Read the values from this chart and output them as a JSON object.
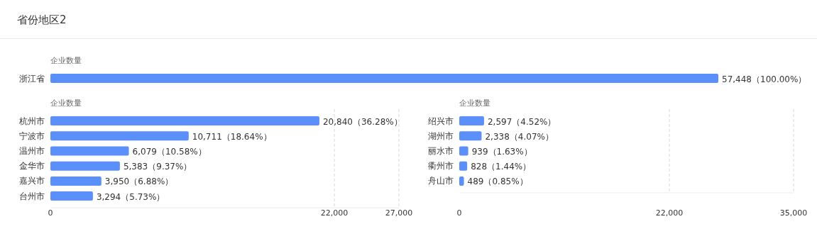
{
  "chart_data": [
    {
      "type": "bar",
      "orientation": "horizontal",
      "title": "省份地区2",
      "ylabel": "企业数量",
      "categories": [
        "浙江省"
      ],
      "series": [
        {
          "color": "#5b8ff9",
          "values": [
            57448
          ],
          "value_labels": [
            "57,448（100.00%）"
          ]
        }
      ]
    },
    {
      "type": "bar",
      "orientation": "horizontal",
      "ylabel": "企业数量",
      "categories": [
        "杭州市",
        "宁波市",
        "温州市",
        "金华市",
        "嘉兴市",
        "台州市"
      ],
      "series": [
        {
          "color": "#5b8ff9",
          "values": [
            20840,
            10711,
            6079,
            5383,
            3950,
            3294
          ],
          "value_labels": [
            "20,840（36.28%）",
            "10,711（18.64%）",
            "6,079（10.58%）",
            "5,383（9.37%）",
            "3,950（6.88%）",
            "3,294（5.73%）"
          ]
        }
      ],
      "xlim": [
        0,
        27000
      ],
      "xticks": [
        0,
        {
          "value": 22000,
          "label": "22,000"
        },
        {
          "value": 27000,
          "label": "27,000"
        }
      ],
      "grid": "x"
    },
    {
      "type": "bar",
      "orientation": "horizontal",
      "ylabel": "企业数量",
      "categories": [
        "绍兴市",
        "湖州市",
        "丽水市",
        "衢州市",
        "舟山市"
      ],
      "series": [
        {
          "color": "#5b8ff9",
          "values": [
            2597,
            2338,
            939,
            828,
            489
          ],
          "value_labels": [
            "2,597（4.52%）",
            "2,338（4.07%）",
            "939（1.63%）",
            "828（1.44%）",
            "489（0.85%）"
          ]
        }
      ],
      "xlim": [
        0,
        35000
      ],
      "xticks": [
        0,
        {
          "value": 22000,
          "label": "22,000"
        },
        {
          "value": 35000,
          "label": "35,000"
        }
      ],
      "grid": "x"
    }
  ]
}
